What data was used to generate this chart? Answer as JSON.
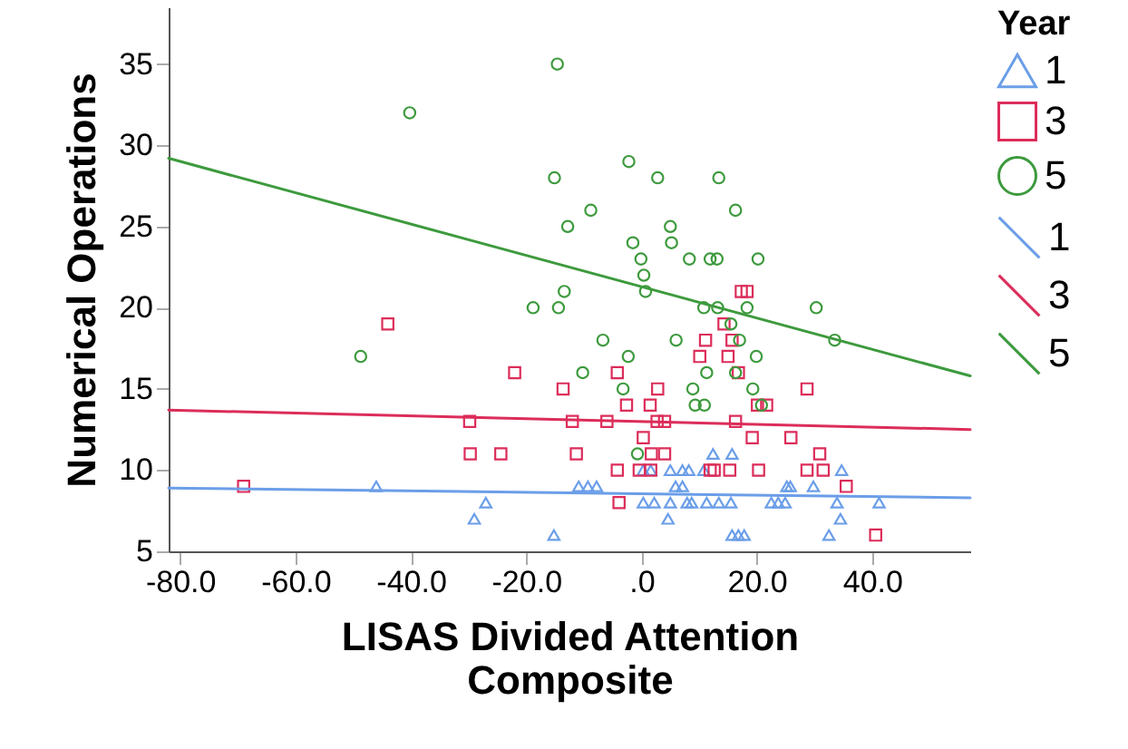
{
  "chart_data": {
    "type": "scatter",
    "xlabel": "LISAS Divided Attention Composite",
    "ylabel": "Numerical Operations",
    "legend_title": "Year",
    "legend": "right",
    "xlim": [
      -82,
      57
    ],
    "xticks": [
      {
        "value": -80,
        "label": "-80.0"
      },
      {
        "value": -60,
        "label": "-60.0"
      },
      {
        "value": -40,
        "label": "-40.0"
      },
      {
        "value": -20,
        "label": "-20.0"
      },
      {
        "value": 0,
        "label": ".0"
      },
      {
        "value": 20,
        "label": "20.0"
      },
      {
        "value": 40,
        "label": "40.0"
      }
    ],
    "ylim": [
      5,
      38.5
    ],
    "yticks": [
      5,
      10,
      15,
      20,
      25,
      30,
      35
    ],
    "series": [
      {
        "name": "1",
        "marker": "triangle",
        "color": "#6b9ee8",
        "x": [
          -46,
          -29,
          -27,
          12.4,
          15.7,
          0.3,
          1.6,
          5.0,
          7.1,
          8.2,
          10.8,
          -10.9,
          -9.3,
          -7.8,
          5.9,
          7.1,
          0.3,
          2.2,
          5.0,
          7.9,
          8.7,
          11.3,
          13.4,
          15.5,
          4.6,
          -15.2,
          15.7,
          16.8,
          34.7,
          25.2,
          25.8,
          29.8,
          22.5,
          23.7,
          24.9,
          33.9,
          41.2,
          34.5,
          17.8,
          32.5
        ],
        "values": [
          9,
          7,
          8,
          11,
          11,
          10,
          10,
          10,
          10,
          10,
          10,
          9,
          9,
          9,
          9,
          9,
          8,
          8,
          8,
          8,
          8,
          8,
          8,
          8,
          7,
          6,
          6,
          6,
          10,
          9,
          9,
          9,
          8,
          8,
          8,
          8,
          8,
          7,
          6,
          6
        ]
      },
      {
        "name": "3",
        "marker": "square",
        "color": "#dc2d5a",
        "x": [
          -44,
          -29.8,
          -29.7,
          -69,
          -22,
          -4.2,
          11.1,
          10.1,
          14.3,
          15.7,
          15.0,
          17.3,
          -13.6,
          2.8,
          -2.6,
          1.5,
          -12.0,
          -6.0,
          2.7,
          4.0,
          16.3,
          0.3,
          -24.4,
          -11.3,
          1.7,
          4.0,
          -4.2,
          -0.4,
          1.6,
          11.9,
          12.6,
          15.3,
          -3.9,
          18.3,
          16.8,
          20.1,
          21.7,
          28.7,
          19.2,
          25.9,
          30.9,
          20.3,
          28.7,
          31.5,
          35.5,
          40.6
        ],
        "values": [
          19,
          13,
          11,
          9,
          16,
          16,
          18,
          17,
          19,
          18,
          17,
          21,
          15,
          15,
          14,
          14,
          13,
          13,
          13,
          13,
          13,
          12,
          11,
          11,
          11,
          11,
          10,
          10,
          10,
          10,
          10,
          10,
          8,
          21,
          16,
          14,
          14,
          15,
          12,
          12,
          11,
          10,
          10,
          10,
          9,
          6
        ]
      },
      {
        "name": "5",
        "marker": "circle",
        "color": "#3d9a3d",
        "x": [
          -40.2,
          -48.7,
          -14.6,
          -2.2,
          -15.1,
          2.8,
          13.4,
          -8.8,
          16.3,
          -12.8,
          5.0,
          -1.5,
          5.2,
          -0.1,
          8.3,
          11.9,
          13.1,
          0.4,
          0.7,
          -13.4,
          -18.8,
          -14.4,
          10.8,
          13.2,
          -6.7,
          6.0,
          -2.3,
          -10.2,
          11.3,
          -3.2,
          8.9,
          9.3,
          10.9,
          -0.7,
          15.5,
          17.0,
          16.3,
          20.2,
          18.3,
          30.3,
          19.9,
          33.5,
          19.3,
          20.8
        ],
        "values": [
          32,
          17,
          35,
          29,
          28,
          28,
          28,
          26,
          26,
          25,
          25,
          24,
          24,
          23,
          23,
          23,
          23,
          22,
          21,
          21,
          20,
          20,
          20,
          20,
          18,
          18,
          17,
          16,
          16,
          15,
          15,
          14,
          14,
          11,
          19,
          18,
          16,
          23,
          20,
          20,
          17,
          18,
          15,
          14
        ]
      },
      {
        "name": "1",
        "type": "line",
        "color": "#6b9ee8",
        "x": [
          -82,
          57
        ],
        "values": [
          8.9,
          8.3
        ]
      },
      {
        "name": "3",
        "type": "line",
        "color": "#dc2d5a",
        "x": [
          -82,
          57
        ],
        "values": [
          13.7,
          12.5
        ]
      },
      {
        "name": "5",
        "type": "line",
        "color": "#3d9a3d",
        "x": [
          -82,
          57
        ],
        "values": [
          29.2,
          15.8
        ]
      }
    ]
  }
}
